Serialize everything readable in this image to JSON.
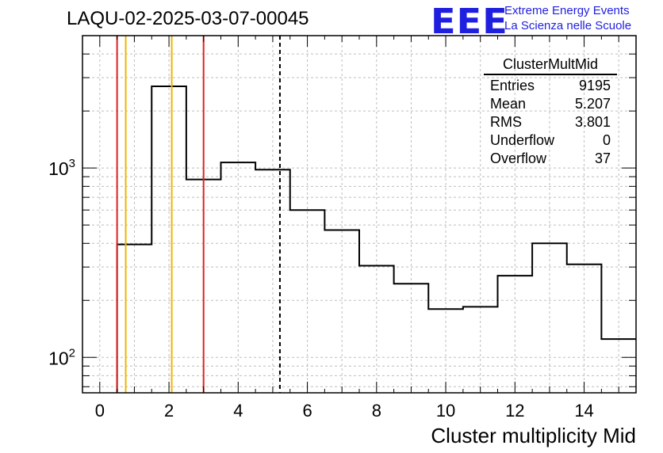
{
  "title": "LAQU-02-2025-03-07-00045",
  "logo": {
    "text": "EEE",
    "line1": "Extreme Energy Events",
    "line2": "La Scienza nelle Scuole",
    "color": "#1f1fe0"
  },
  "stats": {
    "name": "ClusterMultMid",
    "rows": [
      {
        "label": "Entries",
        "value": "9195"
      },
      {
        "label": "Mean",
        "value": "5.207"
      },
      {
        "label": "RMS",
        "value": "3.801"
      },
      {
        "label": "Underflow",
        "value": "0"
      },
      {
        "label": "Overflow",
        "value": "37"
      }
    ]
  },
  "chart_data": {
    "type": "histogram",
    "xlabel": "Cluster multiplicity Mid",
    "ylabel": "",
    "xlim": [
      -0.5,
      15.5
    ],
    "ylim": [
      65,
      5000
    ],
    "yscale": "log",
    "grid": true,
    "xticks": [
      "0",
      "2",
      "4",
      "6",
      "8",
      "10",
      "12",
      "14"
    ],
    "yticks": [
      {
        "base": "10",
        "exp": "2",
        "value": 100
      },
      {
        "base": "10",
        "exp": "3",
        "value": 1000
      }
    ],
    "bins": {
      "edges": [
        0.5,
        1.5,
        2.5,
        3.5,
        4.5,
        5.5,
        6.5,
        7.5,
        8.5,
        9.5,
        10.5,
        11.5,
        12.5,
        13.5,
        14.5,
        15.5
      ],
      "counts": [
        395,
        2700,
        870,
        1070,
        980,
        600,
        470,
        305,
        245,
        180,
        185,
        270,
        400,
        310,
        125
      ]
    },
    "vlines": [
      {
        "x": 0.5,
        "color": "#e02020",
        "style": "solid"
      },
      {
        "x": 0.75,
        "color": "#f0b400",
        "style": "solid"
      },
      {
        "x": 2.08,
        "color": "#f0b400",
        "style": "solid"
      },
      {
        "x": 3.0,
        "color": "#e02020",
        "style": "solid"
      },
      {
        "x": 5.207,
        "color": "#000000",
        "style": "dashed"
      }
    ]
  }
}
